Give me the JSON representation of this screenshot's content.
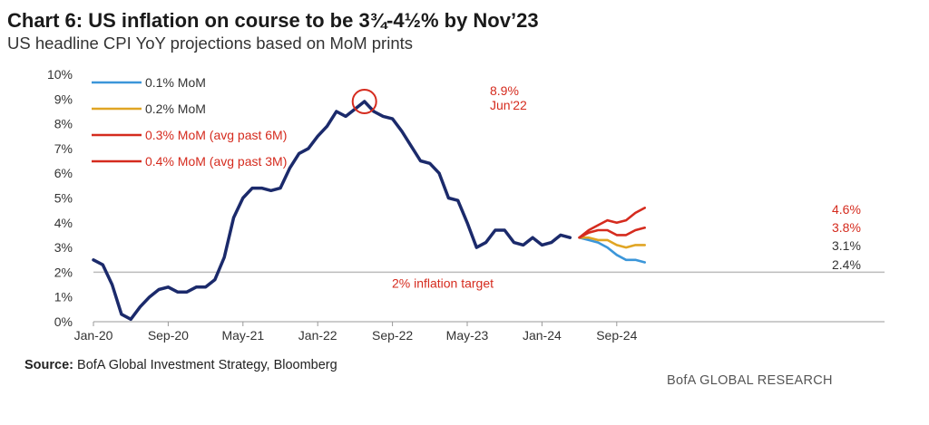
{
  "header": {
    "title": "Chart 6: US inflation on course to be 3¾-4½% by Nov’23",
    "subtitle": "US headline CPI YoY projections based on MoM prints"
  },
  "footer": {
    "source_label": "Source:",
    "source_text": "BofA Global Investment Strategy, Bloomberg",
    "brand": "BofA GLOBAL RESEARCH"
  },
  "colors": {
    "history": "#1b2a6b",
    "mom_01": "#3b96d9",
    "mom_02": "#e0a524",
    "mom_03": "#d52b1e",
    "mom_04": "#d52b1e",
    "annotation": "#d52b1e",
    "target_line": "#bbbbbb",
    "axis_text": "#333333"
  },
  "chart_data": {
    "type": "line",
    "x_ticks": [
      "Jan-20",
      "Sep-20",
      "May-21",
      "Jan-22",
      "Sep-22",
      "May-23",
      "Jan-24",
      "Sep-24"
    ],
    "y_ticks": [
      "0%",
      "1%",
      "2%",
      "3%",
      "4%",
      "5%",
      "6%",
      "7%",
      "8%",
      "9%",
      "10%"
    ],
    "ylim": [
      0,
      10
    ],
    "grid": false,
    "legend_position": "top-left",
    "series": [
      {
        "name": "",
        "key": "history",
        "start": "Jan-20",
        "values": [
          2.5,
          2.3,
          1.5,
          0.3,
          0.1,
          0.6,
          1.0,
          1.3,
          1.4,
          1.2,
          1.2,
          1.4,
          1.4,
          1.7,
          2.6,
          4.2,
          5.0,
          5.4,
          5.4,
          5.3,
          5.4,
          6.2,
          6.8,
          7.0,
          7.5,
          7.9,
          8.5,
          8.3,
          8.6,
          8.9,
          8.5,
          8.3,
          8.2,
          7.7,
          7.1,
          6.5,
          6.4,
          6.0,
          5.0,
          4.9,
          4.0,
          3.0,
          3.2,
          3.7,
          3.7,
          3.2,
          3.1,
          3.4,
          3.1,
          3.2,
          3.5,
          3.4
        ]
      },
      {
        "name": "0.1% MoM",
        "key": "mom_01",
        "start": "May-24",
        "values": [
          3.4,
          3.3,
          3.2,
          3.0,
          2.7,
          2.5,
          2.5,
          2.4
        ]
      },
      {
        "name": "0.2% MoM",
        "key": "mom_02",
        "start": "May-24",
        "values": [
          3.4,
          3.4,
          3.3,
          3.3,
          3.1,
          3.0,
          3.1,
          3.1
        ]
      },
      {
        "name": "0.3% MoM (avg past 6M)",
        "key": "mom_03",
        "start": "May-24",
        "values": [
          3.4,
          3.6,
          3.7,
          3.7,
          3.5,
          3.5,
          3.7,
          3.8
        ]
      },
      {
        "name": "0.4% MoM (avg past 3M)",
        "key": "mom_04",
        "start": "May-24",
        "values": [
          3.4,
          3.7,
          3.9,
          4.1,
          4.0,
          4.1,
          4.4,
          4.6
        ]
      }
    ],
    "end_labels": [
      "4.6%",
      "3.8%",
      "3.1%",
      "2.4%"
    ],
    "peak": {
      "x": "Jun-22",
      "y": 8.9,
      "label_value": "8.9%",
      "label_date": "Jun'22"
    },
    "target": {
      "value": 2,
      "label": "2% inflation target"
    }
  }
}
